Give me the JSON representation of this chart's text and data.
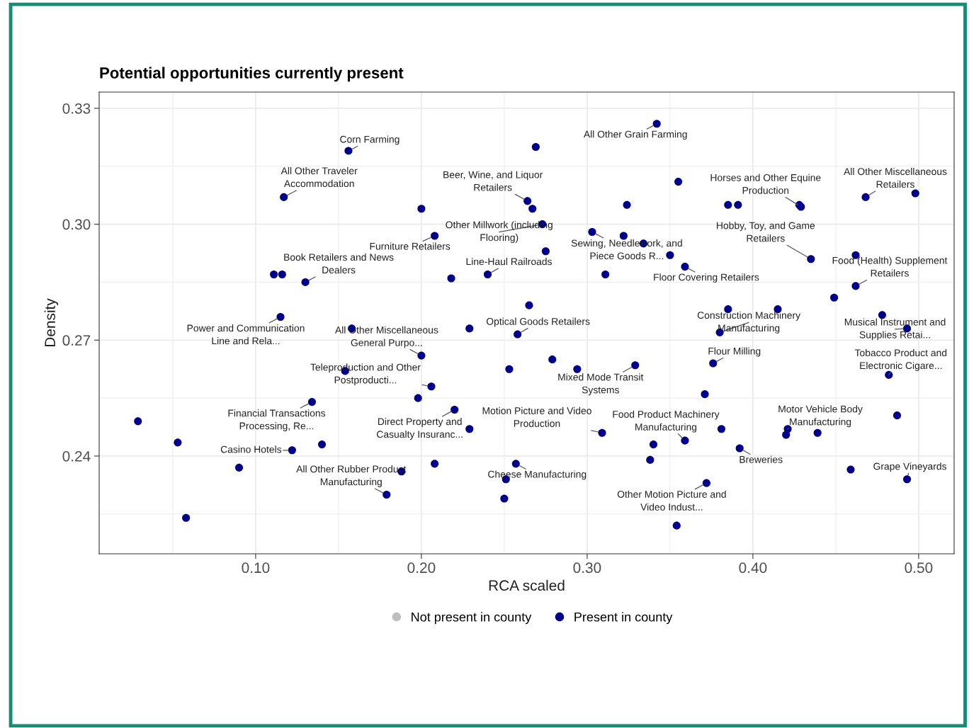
{
  "chart_data": {
    "type": "scatter",
    "title": "Potential opportunities currently present",
    "xlabel": "RCA scaled",
    "ylabel": "Density",
    "xlim": [
      0.0056,
      0.5214
    ],
    "ylim": [
      0.2147,
      0.3342
    ],
    "xticks": [
      {
        "value": 0.05,
        "label": null
      },
      {
        "value": 0.1,
        "label": "0.10"
      },
      {
        "value": 0.15,
        "label": null
      },
      {
        "value": 0.2,
        "label": "0.20"
      },
      {
        "value": 0.25,
        "label": null
      },
      {
        "value": 0.3,
        "label": "0.30"
      },
      {
        "value": 0.35,
        "label": null
      },
      {
        "value": 0.4,
        "label": "0.40"
      },
      {
        "value": 0.45,
        "label": null
      },
      {
        "value": 0.5,
        "label": "0.50"
      }
    ],
    "yticks": [
      {
        "value": 0.225,
        "label": null
      },
      {
        "value": 0.24,
        "label": "0.24"
      },
      {
        "value": 0.255,
        "label": null
      },
      {
        "value": 0.27,
        "label": "0.27"
      },
      {
        "value": 0.285,
        "label": null
      },
      {
        "value": 0.3,
        "label": "0.30"
      },
      {
        "value": 0.315,
        "label": null
      },
      {
        "value": 0.33,
        "label": "0.33"
      }
    ],
    "grid": true,
    "legend": "bottom",
    "marker": "circle",
    "series": [
      {
        "name": "Not present in county",
        "color": "#bebebe"
      },
      {
        "name": "Present in county",
        "color": "#00008b",
        "x": [
          0.029,
          0.053,
          0.058,
          0.09,
          0.111,
          0.116,
          0.117,
          0.115,
          0.122,
          0.13,
          0.134,
          0.14,
          0.154,
          0.156,
          0.158,
          0.179,
          0.188,
          0.198,
          0.2,
          0.2,
          0.206,
          0.208,
          0.208,
          0.218,
          0.22,
          0.229,
          0.229,
          0.24,
          0.25,
          0.251,
          0.257,
          0.253,
          0.258,
          0.264,
          0.265,
          0.267,
          0.269,
          0.273,
          0.275,
          0.279,
          0.294,
          0.303,
          0.309,
          0.311,
          0.322,
          0.324,
          0.329,
          0.334,
          0.338,
          0.34,
          0.342,
          0.35,
          0.354,
          0.355,
          0.359,
          0.359,
          0.371,
          0.372,
          0.376,
          0.38,
          0.381,
          0.385,
          0.385,
          0.391,
          0.392,
          0.415,
          0.42,
          0.421,
          0.428,
          0.429,
          0.435,
          0.439,
          0.449,
          0.459,
          0.462,
          0.462,
          0.468,
          0.478,
          0.482,
          0.487,
          0.493,
          0.493,
          0.498
        ],
        "values": [
          0.249,
          0.2435,
          0.224,
          0.237,
          0.287,
          0.287,
          0.307,
          0.276,
          0.2415,
          0.285,
          0.254,
          0.243,
          0.262,
          0.319,
          0.273,
          0.23,
          0.236,
          0.255,
          0.266,
          0.304,
          0.258,
          0.238,
          0.297,
          0.286,
          0.252,
          0.273,
          0.247,
          0.287,
          0.229,
          0.234,
          0.238,
          0.2625,
          0.2715,
          0.306,
          0.279,
          0.304,
          0.32,
          0.3,
          0.293,
          0.265,
          0.2625,
          0.298,
          0.246,
          0.287,
          0.297,
          0.305,
          0.2635,
          0.295,
          0.239,
          0.243,
          0.326,
          0.292,
          0.222,
          0.311,
          0.244,
          0.289,
          0.256,
          0.233,
          0.264,
          0.272,
          0.247,
          0.305,
          0.278,
          0.305,
          0.242,
          0.278,
          0.2455,
          0.247,
          0.305,
          0.3045,
          0.291,
          0.246,
          0.281,
          0.2365,
          0.284,
          0.292,
          0.307,
          0.2765,
          0.261,
          0.2505,
          0.273,
          0.234,
          0.308
        ]
      }
    ],
    "annotations": [
      {
        "text": "Corn Farming",
        "x": 0.156,
        "y": 0.319
      },
      {
        "text": "All Other Traveler\nAccommodation",
        "x": 0.117,
        "y": 0.307
      },
      {
        "text": "Beer, Wine, and Liquor\nRetailers",
        "x": 0.264,
        "y": 0.306
      },
      {
        "text": "All Other Grain Farming",
        "x": 0.342,
        "y": 0.326
      },
      {
        "text": "Horses and Other Equine\nProduction",
        "x": 0.429,
        "y": 0.3045
      },
      {
        "text": "All Other Miscellaneous\nRetailers",
        "x": 0.468,
        "y": 0.307
      },
      {
        "text": "Other Millwork (including\nFlooring)",
        "x": 0.273,
        "y": 0.3
      },
      {
        "text": "Hobby, Toy, and Game\nRetailers",
        "x": 0.435,
        "y": 0.291
      },
      {
        "text": "Furniture Retailers",
        "x": 0.208,
        "y": 0.297
      },
      {
        "text": "Book Retailers and News\nDealers",
        "x": 0.13,
        "y": 0.285
      },
      {
        "text": "Sewing, Needlework, and\nPiece Goods R...",
        "x": 0.303,
        "y": 0.298
      },
      {
        "text": "Line-Haul Railroads",
        "x": 0.24,
        "y": 0.287
      },
      {
        "text": "Food (Health) Supplement\nRetailers",
        "x": 0.462,
        "y": 0.284
      },
      {
        "text": "Floor Covering Retailers",
        "x": 0.359,
        "y": 0.289
      },
      {
        "text": "Power and Communication\nLine and Rela...",
        "x": 0.115,
        "y": 0.276
      },
      {
        "text": "All Other Miscellaneous\nGeneral Purpo...",
        "x": 0.2,
        "y": 0.266
      },
      {
        "text": "Optical Goods Retailers",
        "x": 0.258,
        "y": 0.2715
      },
      {
        "text": "Construction Machinery\nManufacturing",
        "x": 0.38,
        "y": 0.272
      },
      {
        "text": "Musical Instrument and\nSupplies Retai...",
        "x": 0.493,
        "y": 0.273
      },
      {
        "text": "Flour Milling",
        "x": 0.376,
        "y": 0.264
      },
      {
        "text": "Tobacco Product and\nElectronic Cigare...",
        "x": 0.482,
        "y": 0.261
      },
      {
        "text": "Teleproduction and Other\nPostproducti...",
        "x": 0.206,
        "y": 0.258
      },
      {
        "text": "Mixed Mode Transit\nSystems",
        "x": 0.329,
        "y": 0.2635
      },
      {
        "text": "Financial Transactions\nProcessing, Re...",
        "x": 0.134,
        "y": 0.254
      },
      {
        "text": "Motor Vehicle Body\nManufacturing",
        "x": 0.421,
        "y": 0.247
      },
      {
        "text": "Direct Property and\nCasualty Insuranc...",
        "x": 0.22,
        "y": 0.252
      },
      {
        "text": "Motion Picture and Video\nProduction",
        "x": 0.309,
        "y": 0.246
      },
      {
        "text": "Food Product Machinery\nManufacturing",
        "x": 0.359,
        "y": 0.244
      },
      {
        "text": "Casino Hotels",
        "x": 0.122,
        "y": 0.2415
      },
      {
        "text": "Breweries",
        "x": 0.392,
        "y": 0.242
      },
      {
        "text": "Grape Vineyards",
        "x": 0.493,
        "y": 0.234
      },
      {
        "text": "All Other Rubber Product\nManufacturing",
        "x": 0.179,
        "y": 0.23
      },
      {
        "text": "Cheese Manufacturing",
        "x": 0.257,
        "y": 0.238
      },
      {
        "text": "Other Motion Picture and\nVideo Indust...",
        "x": 0.372,
        "y": 0.233
      }
    ]
  }
}
